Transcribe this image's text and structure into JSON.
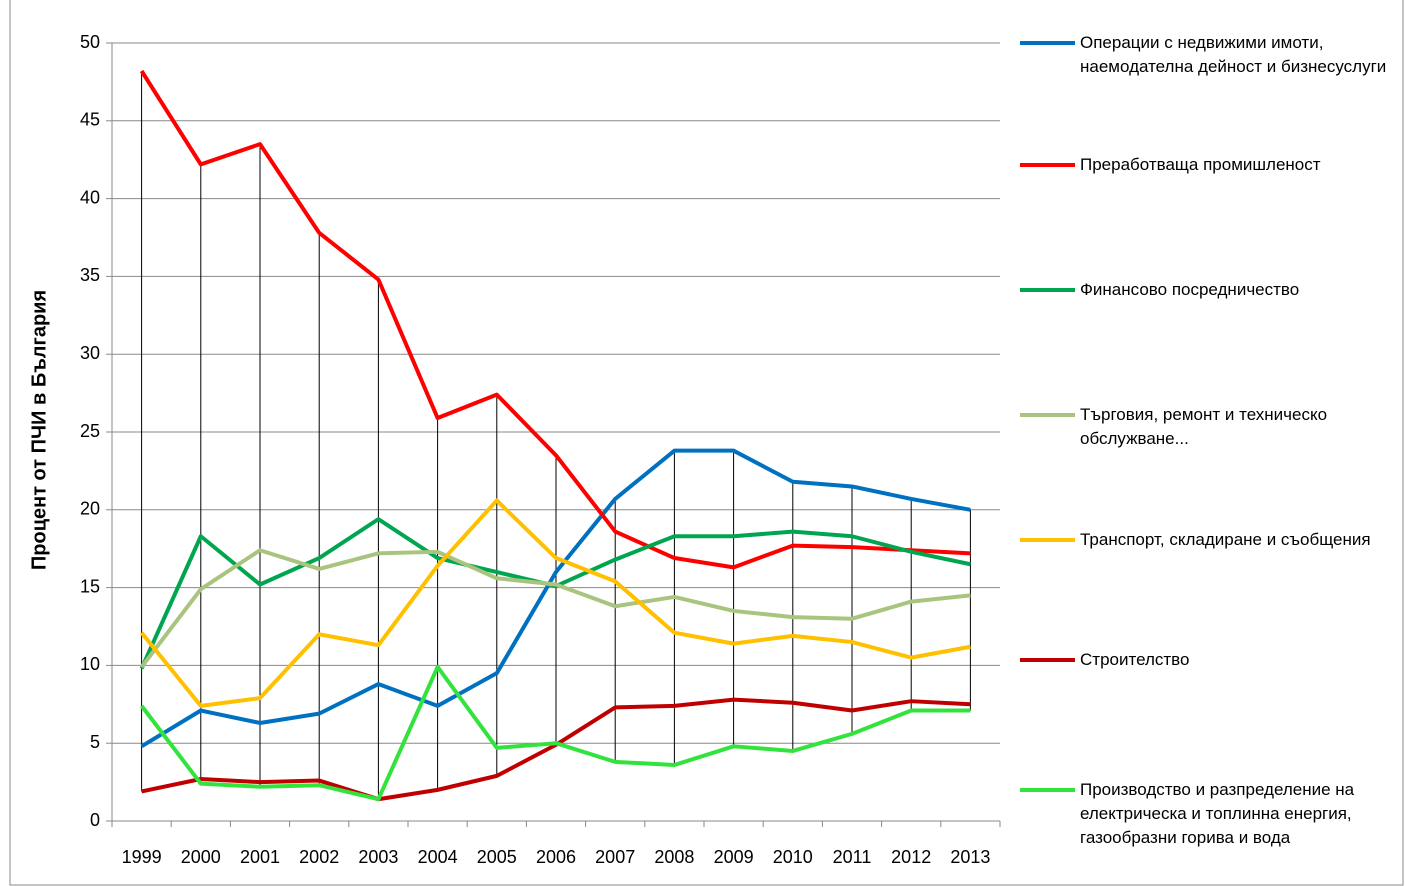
{
  "chart_data": {
    "type": "line",
    "y_label": "Процент от ПЧИ в България",
    "categories": [
      "1999",
      "2000",
      "2001",
      "2002",
      "2003",
      "2004",
      "2005",
      "2006",
      "2007",
      "2008",
      "2009",
      "2010",
      "2011",
      "2012",
      "2013"
    ],
    "series": [
      {
        "name": "Операции с недвижими имоти, наемодателна дейност и бизнесуслуги",
        "color": "#0070c0",
        "values": [
          4.8,
          7.1,
          6.3,
          6.9,
          8.8,
          7.4,
          9.5,
          16.0,
          20.7,
          23.8,
          23.8,
          21.8,
          21.5,
          20.7,
          20.0
        ]
      },
      {
        "name": "Преработваща промишленост",
        "color": "#ff0000",
        "values": [
          48.2,
          42.2,
          43.5,
          37.8,
          34.8,
          25.9,
          27.4,
          23.5,
          18.6,
          16.9,
          16.3,
          17.7,
          17.6,
          17.4,
          17.2
        ]
      },
      {
        "name": "Финансово посредничество",
        "color": "#00a550",
        "values": [
          9.8,
          18.3,
          15.2,
          16.9,
          19.4,
          16.9,
          16.0,
          15.1,
          16.8,
          18.3,
          18.3,
          18.6,
          18.3,
          17.3,
          16.5
        ]
      },
      {
        "name": "Търговия, ремонт и техническо обслужване...",
        "color": "#a9c47f",
        "values": [
          9.9,
          14.9,
          17.4,
          16.2,
          17.2,
          17.3,
          15.6,
          15.2,
          13.8,
          14.4,
          13.5,
          13.1,
          13.0,
          14.1,
          14.5
        ]
      },
      {
        "name": "Транспорт, складиране и съобщения",
        "color": "#ffc000",
        "values": [
          12.1,
          7.4,
          7.9,
          12.0,
          11.3,
          16.4,
          20.6,
          16.9,
          15.4,
          12.1,
          11.4,
          11.9,
          11.5,
          10.5,
          11.2
        ]
      },
      {
        "name": "Строителство",
        "color": "#c00000",
        "values": [
          1.9,
          2.7,
          2.5,
          2.6,
          1.4,
          2.0,
          2.9,
          4.9,
          7.3,
          7.4,
          7.8,
          7.6,
          7.1,
          7.7,
          7.5
        ]
      },
      {
        "name": "Производство и разпределение на електрическа и топлинна енергия, газообразни горива и вода",
        "color": "#33e33d",
        "values": [
          7.4,
          2.4,
          2.2,
          2.3,
          1.4,
          9.9,
          4.7,
          5.0,
          3.8,
          3.6,
          4.8,
          4.5,
          5.6,
          7.1,
          7.1
        ]
      }
    ],
    "ylim": [
      0,
      50
    ],
    "yticks": [
      0,
      5,
      10,
      15,
      20,
      25,
      30,
      35,
      40,
      45,
      50
    ],
    "grid": true,
    "drop_lines": true,
    "legend": "right"
  }
}
